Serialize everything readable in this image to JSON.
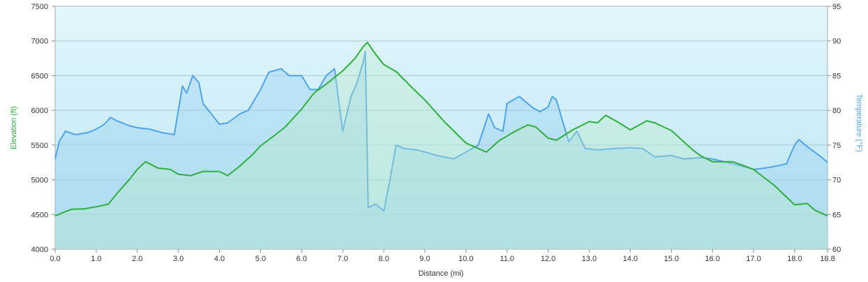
{
  "chart_data": {
    "type": "area",
    "xlabel": "Distance  (mi)",
    "ylabel_left": "Elevation (ft)",
    "ylabel_right": "Temperature (°F)",
    "xlim": [
      0,
      18.8
    ],
    "ylim_left": [
      4000,
      7500
    ],
    "ylim_right": [
      60,
      95
    ],
    "x_ticks": [
      "0.0",
      "1.0",
      "2.0",
      "3.0",
      "4.0",
      "5.0",
      "6.0",
      "7.0",
      "8.0",
      "9.0",
      "10.0",
      "11.0",
      "12.0",
      "13.0",
      "14.0",
      "15.0",
      "16.0",
      "17.0",
      "18.0",
      "18.8"
    ],
    "y_ticks_left": [
      "4000",
      "4500",
      "5000",
      "5500",
      "6000",
      "6500",
      "7000",
      "7500"
    ],
    "y_ticks_right": [
      "60",
      "65",
      "70",
      "75",
      "80",
      "85",
      "90",
      "95"
    ],
    "grid": true,
    "series": [
      {
        "name": "Elevation (ft)",
        "axis": "left",
        "color": "#2eae3c",
        "points": [
          [
            0.0,
            4480
          ],
          [
            0.2,
            4530
          ],
          [
            0.4,
            4575
          ],
          [
            0.7,
            4580
          ],
          [
            1.0,
            4610
          ],
          [
            1.3,
            4650
          ],
          [
            1.5,
            4800
          ],
          [
            1.8,
            5000
          ],
          [
            2.0,
            5150
          ],
          [
            2.2,
            5260
          ],
          [
            2.5,
            5170
          ],
          [
            2.8,
            5150
          ],
          [
            3.0,
            5080
          ],
          [
            3.3,
            5060
          ],
          [
            3.6,
            5120
          ],
          [
            4.0,
            5120
          ],
          [
            4.2,
            5060
          ],
          [
            4.5,
            5200
          ],
          [
            4.8,
            5360
          ],
          [
            5.0,
            5490
          ],
          [
            5.3,
            5620
          ],
          [
            5.6,
            5760
          ],
          [
            6.0,
            6020
          ],
          [
            6.3,
            6250
          ],
          [
            6.6,
            6380
          ],
          [
            7.0,
            6570
          ],
          [
            7.3,
            6750
          ],
          [
            7.5,
            6920
          ],
          [
            7.6,
            6980
          ],
          [
            7.8,
            6810
          ],
          [
            8.0,
            6660
          ],
          [
            8.3,
            6560
          ],
          [
            8.7,
            6320
          ],
          [
            9.0,
            6150
          ],
          [
            9.5,
            5820
          ],
          [
            10.0,
            5530
          ],
          [
            10.3,
            5450
          ],
          [
            10.5,
            5400
          ],
          [
            10.8,
            5560
          ],
          [
            11.2,
            5700
          ],
          [
            11.5,
            5790
          ],
          [
            11.7,
            5760
          ],
          [
            12.0,
            5600
          ],
          [
            12.2,
            5570
          ],
          [
            12.6,
            5720
          ],
          [
            13.0,
            5840
          ],
          [
            13.2,
            5820
          ],
          [
            13.4,
            5930
          ],
          [
            13.7,
            5830
          ],
          [
            14.0,
            5720
          ],
          [
            14.4,
            5850
          ],
          [
            14.6,
            5820
          ],
          [
            15.0,
            5710
          ],
          [
            15.5,
            5440
          ],
          [
            15.7,
            5350
          ],
          [
            16.0,
            5260
          ],
          [
            16.5,
            5260
          ],
          [
            17.0,
            5150
          ],
          [
            17.5,
            4920
          ],
          [
            18.0,
            4640
          ],
          [
            18.3,
            4660
          ],
          [
            18.5,
            4560
          ],
          [
            18.8,
            4480
          ]
        ]
      },
      {
        "name": "Temperature (°F)",
        "axis": "right",
        "color": "#4fa3e8",
        "points": [
          [
            0.0,
            73
          ],
          [
            0.1,
            75.5
          ],
          [
            0.25,
            77
          ],
          [
            0.5,
            76.5
          ],
          [
            0.8,
            76.8
          ],
          [
            1.0,
            77.3
          ],
          [
            1.2,
            78
          ],
          [
            1.35,
            79
          ],
          [
            1.5,
            78.5
          ],
          [
            1.8,
            77.8
          ],
          [
            2.0,
            77.5
          ],
          [
            2.3,
            77.3
          ],
          [
            2.6,
            76.8
          ],
          [
            2.9,
            76.5
          ],
          [
            3.0,
            80
          ],
          [
            3.1,
            83.5
          ],
          [
            3.2,
            82.5
          ],
          [
            3.35,
            85
          ],
          [
            3.5,
            84
          ],
          [
            3.6,
            81
          ],
          [
            3.8,
            79.5
          ],
          [
            4.0,
            78
          ],
          [
            4.2,
            78.2
          ],
          [
            4.5,
            79.5
          ],
          [
            4.7,
            80
          ],
          [
            5.0,
            83
          ],
          [
            5.2,
            85.5
          ],
          [
            5.5,
            86
          ],
          [
            5.7,
            85
          ],
          [
            6.0,
            85
          ],
          [
            6.2,
            83
          ],
          [
            6.4,
            83
          ],
          [
            6.6,
            85
          ],
          [
            6.8,
            86
          ],
          [
            7.0,
            77
          ],
          [
            7.2,
            82
          ],
          [
            7.35,
            84
          ],
          [
            7.5,
            87
          ],
          [
            7.55,
            88.5
          ],
          [
            7.62,
            66
          ],
          [
            7.8,
            66.5
          ],
          [
            8.0,
            65.5
          ],
          [
            8.15,
            70
          ],
          [
            8.3,
            75
          ],
          [
            8.5,
            74.5
          ],
          [
            8.8,
            74.3
          ],
          [
            9.0,
            74
          ],
          [
            9.3,
            73.5
          ],
          [
            9.7,
            73
          ],
          [
            10.0,
            74
          ],
          [
            10.3,
            75
          ],
          [
            10.55,
            79.5
          ],
          [
            10.7,
            77.5
          ],
          [
            10.9,
            77
          ],
          [
            11.0,
            81
          ],
          [
            11.3,
            82
          ],
          [
            11.6,
            80.5
          ],
          [
            11.8,
            79.8
          ],
          [
            12.0,
            80.5
          ],
          [
            12.1,
            82
          ],
          [
            12.2,
            81.5
          ],
          [
            12.35,
            78.5
          ],
          [
            12.5,
            75.5
          ],
          [
            12.7,
            77
          ],
          [
            12.9,
            74.5
          ],
          [
            13.2,
            74.3
          ],
          [
            13.6,
            74.5
          ],
          [
            14.0,
            74.6
          ],
          [
            14.3,
            74.5
          ],
          [
            14.6,
            73.3
          ],
          [
            15.0,
            73.5
          ],
          [
            15.3,
            73
          ],
          [
            15.7,
            73.2
          ],
          [
            16.0,
            73
          ],
          [
            16.5,
            72.3
          ],
          [
            17.0,
            71.5
          ],
          [
            17.4,
            71.8
          ],
          [
            17.8,
            72.3
          ],
          [
            18.0,
            75
          ],
          [
            18.1,
            75.8
          ],
          [
            18.3,
            74.8
          ],
          [
            18.6,
            73.5
          ],
          [
            18.8,
            72.5
          ]
        ]
      }
    ]
  }
}
